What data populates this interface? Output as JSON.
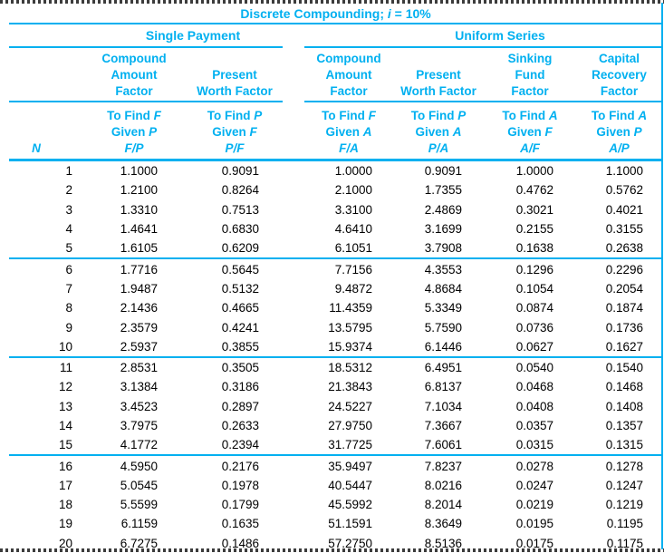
{
  "theme": {
    "accent": "#00B0F0",
    "data_text": "#000000",
    "background": "#FFFFFF",
    "dashed_border_dark": "#3C3C3C"
  },
  "table": {
    "title_parts": {
      "prefix": "Discrete Compounding; ",
      "symbol": "i",
      "suffix": " = 10%"
    },
    "group_headers": [
      {
        "id": "single",
        "label": "Single Payment"
      },
      {
        "id": "uniform",
        "label": "Uniform Series"
      }
    ],
    "n_header": "N",
    "find_word": "To Find",
    "given_word": "Given",
    "factor_columns": [
      {
        "id": "fp",
        "group": "single",
        "title_lines": [
          "Compound",
          "Amount",
          "Factor"
        ],
        "find": "F",
        "given": "P",
        "ratio": "F/P"
      },
      {
        "id": "pf",
        "group": "single",
        "title_lines": [
          "Present",
          "Worth Factor"
        ],
        "find": "P",
        "given": "F",
        "ratio": "P/F"
      },
      {
        "id": "fa",
        "group": "uniform",
        "title_lines": [
          "Compound",
          "Amount",
          "Factor"
        ],
        "find": "F",
        "given": "A",
        "ratio": "F/A"
      },
      {
        "id": "pa",
        "group": "uniform",
        "title_lines": [
          "Present",
          "Worth Factor"
        ],
        "find": "P",
        "given": "A",
        "ratio": "P/A"
      },
      {
        "id": "af",
        "group": "uniform",
        "title_lines": [
          "Sinking",
          "Fund",
          "Factor"
        ],
        "find": "A",
        "given": "F",
        "ratio": "A/F"
      },
      {
        "id": "ap",
        "group": "uniform",
        "title_lines": [
          "Capital",
          "Recovery",
          "Factor"
        ],
        "find": "A",
        "given": "P",
        "ratio": "A/P"
      }
    ]
  },
  "chart_data": {
    "type": "table",
    "title": "Discrete Compounding; i = 10%",
    "columns": [
      "N",
      "F/P",
      "P/F",
      "F/A",
      "P/A",
      "A/F",
      "A/P"
    ],
    "row_group_size": 5,
    "rows": [
      [
        "1",
        "1.1000",
        "0.9091",
        "1.0000",
        "0.9091",
        "1.0000",
        "1.1000"
      ],
      [
        "2",
        "1.2100",
        "0.8264",
        "2.1000",
        "1.7355",
        "0.4762",
        "0.5762"
      ],
      [
        "3",
        "1.3310",
        "0.7513",
        "3.3100",
        "2.4869",
        "0.3021",
        "0.4021"
      ],
      [
        "4",
        "1.4641",
        "0.6830",
        "4.6410",
        "3.1699",
        "0.2155",
        "0.3155"
      ],
      [
        "5",
        "1.6105",
        "0.6209",
        "6.1051",
        "3.7908",
        "0.1638",
        "0.2638"
      ],
      [
        "6",
        "1.7716",
        "0.5645",
        "7.7156",
        "4.3553",
        "0.1296",
        "0.2296"
      ],
      [
        "7",
        "1.9487",
        "0.5132",
        "9.4872",
        "4.8684",
        "0.1054",
        "0.2054"
      ],
      [
        "8",
        "2.1436",
        "0.4665",
        "11.4359",
        "5.3349",
        "0.0874",
        "0.1874"
      ],
      [
        "9",
        "2.3579",
        "0.4241",
        "13.5795",
        "5.7590",
        "0.0736",
        "0.1736"
      ],
      [
        "10",
        "2.5937",
        "0.3855",
        "15.9374",
        "6.1446",
        "0.0627",
        "0.1627"
      ],
      [
        "11",
        "2.8531",
        "0.3505",
        "18.5312",
        "6.4951",
        "0.0540",
        "0.1540"
      ],
      [
        "12",
        "3.1384",
        "0.3186",
        "21.3843",
        "6.8137",
        "0.0468",
        "0.1468"
      ],
      [
        "13",
        "3.4523",
        "0.2897",
        "24.5227",
        "7.1034",
        "0.0408",
        "0.1408"
      ],
      [
        "14",
        "3.7975",
        "0.2633",
        "27.9750",
        "7.3667",
        "0.0357",
        "0.1357"
      ],
      [
        "15",
        "4.1772",
        "0.2394",
        "31.7725",
        "7.6061",
        "0.0315",
        "0.1315"
      ],
      [
        "16",
        "4.5950",
        "0.2176",
        "35.9497",
        "7.8237",
        "0.0278",
        "0.1278"
      ],
      [
        "17",
        "5.0545",
        "0.1978",
        "40.5447",
        "8.0216",
        "0.0247",
        "0.1247"
      ],
      [
        "18",
        "5.5599",
        "0.1799",
        "45.5992",
        "8.2014",
        "0.0219",
        "0.1219"
      ],
      [
        "19",
        "6.1159",
        "0.1635",
        "51.1591",
        "8.3649",
        "0.0195",
        "0.1195"
      ],
      [
        "20",
        "6.7275",
        "0.1486",
        "57.2750",
        "8.5136",
        "0.0175",
        "0.1175"
      ]
    ]
  }
}
